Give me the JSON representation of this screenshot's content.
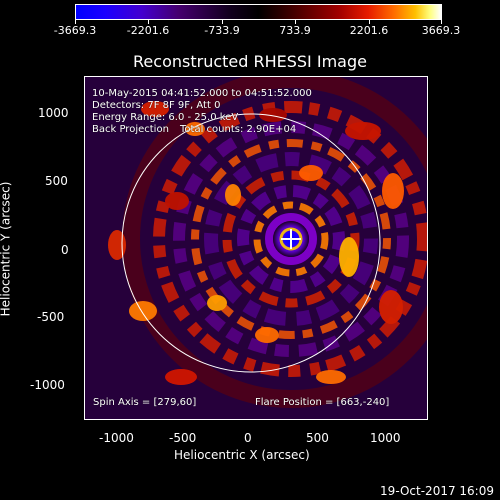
{
  "colorbar": {
    "ticks": [
      "-3669.3",
      "-2201.6",
      "-733.9",
      "733.9",
      "2201.6",
      "3669.3"
    ]
  },
  "title": "Reconstructed RHESSI Image",
  "annotation": {
    "line1": "10-May-2015 04:41:52.000 to 04:51:52.000",
    "line2": "Detectors: 7F 8F 9F, Att 0",
    "line3": "Energy Range: 6.0 - 25.0 keV",
    "line4_left": "Back Projection",
    "line4_right": "Total counts: 2.90E+04",
    "spin_axis": "Spin Axis = [279,60]",
    "flare_position": "Flare Position = [663,-240]"
  },
  "axes": {
    "xlabel": "Heliocentric X (arcsec)",
    "ylabel": "Heliocentric Y (arcsec)",
    "x_ticks": [
      "-1000",
      "-500",
      "0",
      "500",
      "1000"
    ],
    "y_ticks": [
      "1000",
      "500",
      "0",
      "-500",
      "-1000"
    ]
  },
  "footer": {
    "timestamp": "19-Oct-2017 16:09"
  },
  "colors": {
    "background": "#000000",
    "text": "#ffffff",
    "limb": "#ffffff"
  },
  "icons": {
    "source_marker": "plus-marker-icon"
  }
}
